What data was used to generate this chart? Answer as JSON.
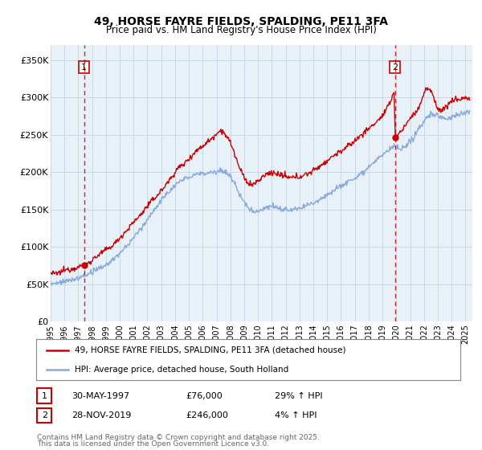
{
  "title": "49, HORSE FAYRE FIELDS, SPALDING, PE11 3FA",
  "subtitle": "Price paid vs. HM Land Registry's House Price Index (HPI)",
  "ylabel_ticks": [
    "£0",
    "£50K",
    "£100K",
    "£150K",
    "£200K",
    "£250K",
    "£300K",
    "£350K"
  ],
  "ytick_values": [
    0,
    50000,
    100000,
    150000,
    200000,
    250000,
    300000,
    350000
  ],
  "ylim": [
    0,
    370000
  ],
  "xlim_start": 1995.0,
  "xlim_end": 2025.5,
  "xtick_years": [
    1995,
    1996,
    1997,
    1998,
    1999,
    2000,
    2001,
    2002,
    2003,
    2004,
    2005,
    2006,
    2007,
    2008,
    2009,
    2010,
    2011,
    2012,
    2013,
    2014,
    2015,
    2016,
    2017,
    2018,
    2019,
    2020,
    2021,
    2022,
    2023,
    2024,
    2025
  ],
  "red_line_color": "#cc0000",
  "blue_line_color": "#88aadd",
  "grid_color": "#c8d8e8",
  "bg_color": "#e8f0f8",
  "sale1_date": 1997.415,
  "sale1_price": 76000,
  "sale2_date": 2019.91,
  "sale2_price": 246000,
  "legend_red": "49, HORSE FAYRE FIELDS, SPALDING, PE11 3FA (detached house)",
  "legend_blue": "HPI: Average price, detached house, South Holland",
  "ann1_date": "30-MAY-1997",
  "ann1_price": "£76,000",
  "ann1_hpi": "29% ↑ HPI",
  "ann2_date": "28-NOV-2019",
  "ann2_price": "£246,000",
  "ann2_hpi": "4% ↑ HPI",
  "footnote1": "Contains HM Land Registry data © Crown copyright and database right 2025.",
  "footnote2": "This data is licensed under the Open Government Licence v3.0."
}
